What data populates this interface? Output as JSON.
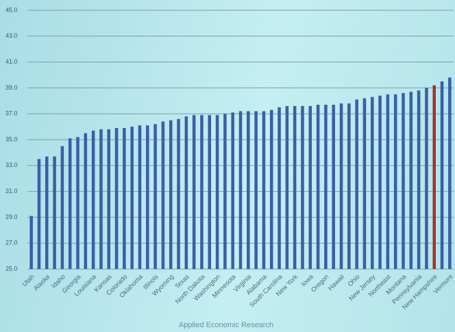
{
  "chart_data": {
    "type": "bar",
    "source": "Applied Economic Research",
    "categories": [
      "Utah",
      null,
      "Alaska",
      null,
      "Idaho",
      null,
      "Georgia",
      null,
      "Louisiana",
      null,
      "Kansas",
      null,
      "Colorado",
      null,
      "Oklahoma",
      null,
      "Illinois",
      null,
      "Wyoming",
      null,
      "Texas",
      null,
      "North Dakota",
      null,
      "Washington",
      null,
      "Minnesota",
      null,
      "Virginia",
      null,
      "Alabama",
      null,
      "South Carolina",
      null,
      "New York",
      null,
      "Iowa",
      null,
      "Oregon",
      null,
      "Hawaii",
      null,
      "Ohio",
      null,
      "New Jersey",
      null,
      "Northeast",
      null,
      "Montana",
      null,
      "Pennsylvania",
      null,
      "New Hampshire",
      null,
      "Vermont"
    ],
    "values": [
      29.1,
      33.5,
      33.7,
      33.7,
      34.5,
      35.1,
      35.2,
      35.5,
      35.7,
      35.8,
      35.8,
      35.9,
      35.9,
      36.0,
      36.1,
      36.1,
      36.2,
      36.4,
      36.5,
      36.6,
      36.8,
      36.9,
      36.9,
      36.9,
      36.9,
      37.0,
      37.1,
      37.2,
      37.2,
      37.2,
      37.2,
      37.3,
      37.5,
      37.6,
      37.6,
      37.6,
      37.6,
      37.7,
      37.7,
      37.7,
      37.8,
      37.8,
      38.1,
      38.2,
      38.3,
      38.4,
      38.5,
      38.5,
      38.6,
      38.7,
      38.8,
      39.0,
      39.2,
      39.5,
      39.8
    ],
    "bar_colors": [
      "#3a5ea6",
      "#3a5ea6",
      "#3a5ea6",
      "#3a5ea6",
      "#3a5ea6",
      "#3a5ea6",
      "#3a5ea6",
      "#3a5ea6",
      "#3a5ea6",
      "#3a5ea6",
      "#3a5ea6",
      "#3a5ea6",
      "#3a5ea6",
      "#3a5ea6",
      "#3a5ea6",
      "#3a5ea6",
      "#3a5ea6",
      "#3a5ea6",
      "#3a5ea6",
      "#3a5ea6",
      "#3a5ea6",
      "#3a5ea6",
      "#3a5ea6",
      "#3a5ea6",
      "#3a5ea6",
      "#3a5ea6",
      "#3a5ea6",
      "#3a5ea6",
      "#3a5ea6",
      "#3a5ea6",
      "#3a5ea6",
      "#3a5ea6",
      "#3a5ea6",
      "#3a5ea6",
      "#3a5ea6",
      "#3a5ea6",
      "#3a5ea6",
      "#3a5ea6",
      "#3a5ea6",
      "#3a5ea6",
      "#3a5ea6",
      "#3a5ea6",
      "#3a5ea6",
      "#3a5ea6",
      "#3a5ea6",
      "#3a5ea6",
      "#3a5ea6",
      "#3a5ea6",
      "#3a5ea6",
      "#3a5ea6",
      "#3a5ea6",
      "#3a5ea6",
      "#a3342c",
      "#3a5ea6",
      "#3a5ea6"
    ],
    "ylim": [
      25,
      45
    ],
    "yticks": [
      {
        "value": 25,
        "label": "25.0"
      },
      {
        "value": 27,
        "label": "27.0"
      },
      {
        "value": 29,
        "label": "29.0"
      },
      {
        "value": 31,
        "label": "31.0"
      },
      {
        "value": 33,
        "label": "33.0"
      },
      {
        "value": 35,
        "label": "35.0"
      },
      {
        "value": 37,
        "label": "37.0"
      },
      {
        "value": 39,
        "label": "39.0"
      },
      {
        "value": 41,
        "label": "41.0"
      },
      {
        "value": 43,
        "label": "43.0"
      },
      {
        "value": 45,
        "label": "45.0"
      }
    ],
    "grid": true
  }
}
